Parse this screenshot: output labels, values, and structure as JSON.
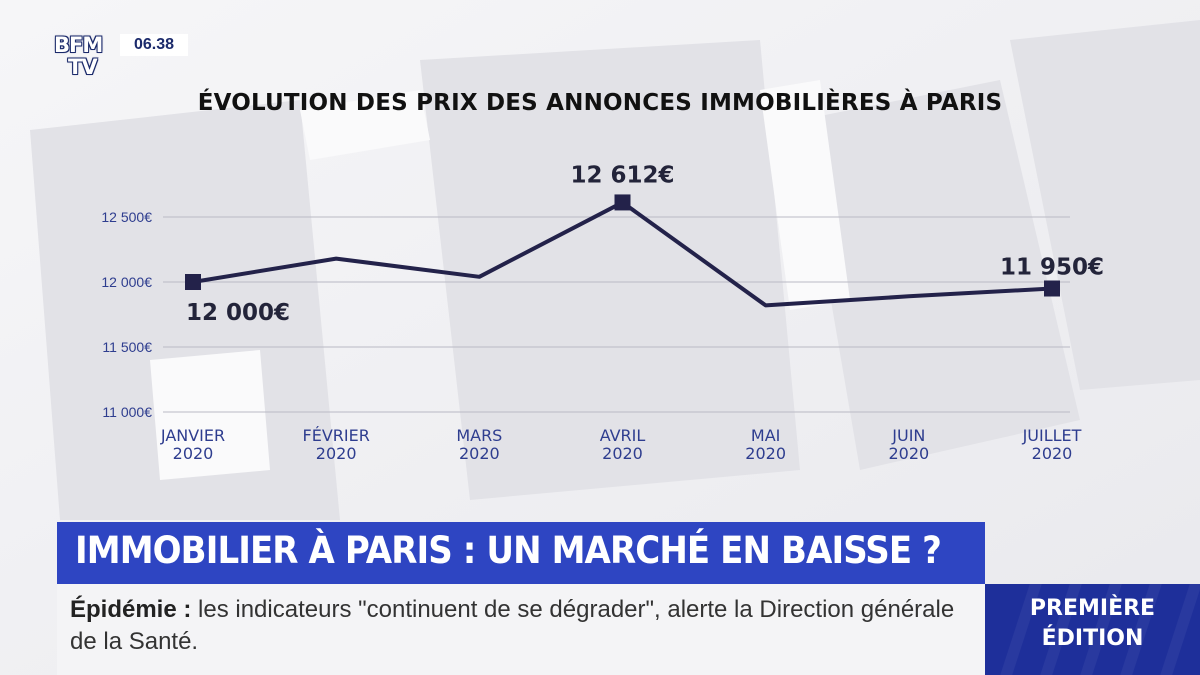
{
  "channel": {
    "logo_line1": "BFM",
    "logo_line2": "TV",
    "time": "06.38"
  },
  "chart_data": {
    "type": "line",
    "title": "ÉVOLUTION DES PRIX DES ANNONCES IMMOBILIÈRES À PARIS",
    "categories": [
      "JANVIER 2020",
      "FÉVRIER 2020",
      "MARS 2020",
      "AVRIL 2020",
      "MAI 2020",
      "JUIN 2020",
      "JUILLET 2020"
    ],
    "category_lines": [
      [
        "JANVIER",
        "2020"
      ],
      [
        "FÉVRIER",
        "2020"
      ],
      [
        "MARS",
        "2020"
      ],
      [
        "AVRIL",
        "2020"
      ],
      [
        "MAI",
        "2020"
      ],
      [
        "JUIN",
        "2020"
      ],
      [
        "JUILLET",
        "2020"
      ]
    ],
    "values": [
      12000,
      12180,
      12040,
      12612,
      11820,
      11890,
      11950
    ],
    "yticks": [
      12500,
      12000,
      11500,
      11000
    ],
    "ytick_labels": [
      "12 500€",
      "12 000€",
      "11 500€",
      "11 000€"
    ],
    "ylim": [
      11000,
      12500
    ],
    "grid": true,
    "markers": [
      {
        "index": 0,
        "label": "12 000€"
      },
      {
        "index": 3,
        "label": "12 612€"
      },
      {
        "index": 6,
        "label": "11 950€"
      }
    ],
    "colors": {
      "line": "#23224a",
      "grid": "#b9b9c4",
      "text": "#23243a",
      "tick": "#2e3d8f"
    }
  },
  "headline": "IMMOBILIER À PARIS : UN MARCHÉ EN BAISSE ?",
  "ticker": {
    "keyword": "Épidémie :",
    "text": "les indicateurs \"continuent de se dégrader\", alerte la Direction générale de la Santé."
  },
  "edition": {
    "line1": "PREMIÈRE",
    "line2": "ÉDITION"
  }
}
